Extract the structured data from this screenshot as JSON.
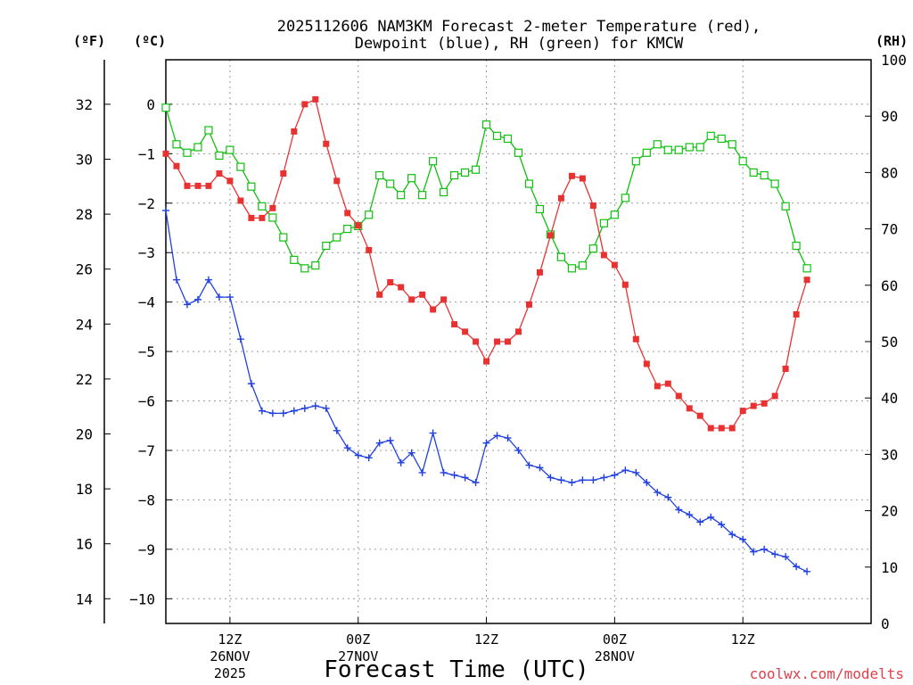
{
  "chart_data": {
    "type": "line",
    "title_line1": "2025112606 NAM3KM Forecast 2-meter Temperature (red),",
    "title_line2": "Dewpoint (blue), RH (green) for KMCW",
    "xlabel": "Forecast Time (UTC)",
    "credit": "coolwx.com/modelts",
    "units": {
      "fahrenheit": "(ºF)",
      "celsius": "(ºC)",
      "rh": "(RH)"
    },
    "x": {
      "start_hour": 6,
      "end_hour": 72,
      "step_hours": 1
    },
    "x_ticks": [
      {
        "hour": 12,
        "label": "12Z",
        "sub1": "26NOV",
        "sub2": "2025"
      },
      {
        "hour": 24,
        "label": "00Z",
        "sub1": "27NOV",
        "sub2": ""
      },
      {
        "hour": 36,
        "label": "12Z",
        "sub1": "",
        "sub2": ""
      },
      {
        "hour": 48,
        "label": "00Z",
        "sub1": "28NOV",
        "sub2": ""
      },
      {
        "hour": 60,
        "label": "12Z",
        "sub1": "",
        "sub2": ""
      }
    ],
    "celsius_axis": {
      "min": -10.5,
      "max": 0.9,
      "ticks": [
        "0",
        "−1",
        "−2",
        "−3",
        "−4",
        "−5",
        "−6",
        "−7",
        "−8",
        "−9",
        "−10"
      ]
    },
    "fahrenheit_axis": {
      "ticks": [
        "32",
        "30",
        "28",
        "26",
        "24",
        "22",
        "20",
        "18",
        "16",
        "14"
      ]
    },
    "rh_axis": {
      "min": 0,
      "max": 100,
      "ticks": [
        "100",
        "90",
        "80",
        "70",
        "60",
        "50",
        "40",
        "30",
        "20",
        "10",
        "0"
      ]
    },
    "series": [
      {
        "name": "Temperature",
        "unit": "C",
        "color": "#e83232",
        "marker": "filled-square",
        "values": [
          -1.0,
          -1.25,
          -1.65,
          -1.65,
          -1.65,
          -1.4,
          -1.55,
          -1.95,
          -2.3,
          -2.3,
          -2.1,
          -1.4,
          -0.55,
          0.0,
          0.1,
          -0.8,
          -1.55,
          -2.2,
          -2.45,
          -2.95,
          -3.85,
          -3.6,
          -3.7,
          -3.95,
          -3.85,
          -4.15,
          -3.95,
          -4.45,
          -4.6,
          -4.8,
          -5.2,
          -4.8,
          -4.8,
          -4.6,
          -4.05,
          -3.4,
          -2.65,
          -1.9,
          -1.45,
          -1.5,
          -2.05,
          -3.05,
          -3.25,
          -3.65,
          -4.75,
          -5.25,
          -5.7,
          -5.65,
          -5.9,
          -6.15,
          -6.3,
          -6.55,
          -6.55,
          -6.55,
          -6.2,
          -6.1,
          -6.05,
          -5.9,
          -5.35,
          -4.25,
          -3.55
        ]
      },
      {
        "name": "Dewpoint",
        "unit": "C",
        "color": "#2040e0",
        "marker": "plus",
        "values": [
          -2.15,
          -3.55,
          -4.05,
          -3.95,
          -3.55,
          -3.9,
          -3.9,
          -4.75,
          -5.65,
          -6.2,
          -6.25,
          -6.25,
          -6.2,
          -6.15,
          -6.1,
          -6.15,
          -6.6,
          -6.95,
          -7.1,
          -7.15,
          -6.85,
          -6.8,
          -7.25,
          -7.05,
          -7.45,
          -6.65,
          -7.45,
          -7.5,
          -7.55,
          -7.65,
          -6.85,
          -6.7,
          -6.75,
          -7.0,
          -7.3,
          -7.35,
          -7.55,
          -7.6,
          -7.65,
          -7.6,
          -7.6,
          -7.55,
          -7.5,
          -7.4,
          -7.45,
          -7.65,
          -7.85,
          -7.95,
          -8.2,
          -8.3,
          -8.45,
          -8.35,
          -8.5,
          -8.7,
          -8.8,
          -9.05,
          -9.0,
          -9.1,
          -9.15,
          -9.35,
          -9.45
        ]
      },
      {
        "name": "RH",
        "unit": "%",
        "color": "#10c010",
        "marker": "open-square",
        "values": [
          91.5,
          85,
          83.5,
          84.5,
          87.5,
          83,
          84,
          81,
          77.5,
          74,
          72,
          68.5,
          64.5,
          63,
          63.5,
          67,
          68.5,
          70,
          70.5,
          72.5,
          79.5,
          78,
          76,
          79,
          76,
          82,
          76.5,
          79.5,
          80,
          80.5,
          88.5,
          86.5,
          86,
          83.5,
          78,
          73.5,
          69,
          65,
          63,
          63.5,
          66.5,
          71,
          72.5,
          75.5,
          82,
          83.5,
          85,
          84,
          84,
          84.5,
          84.5,
          86.5,
          86,
          85,
          82,
          80,
          79.5,
          78,
          74,
          67,
          63
        ]
      }
    ]
  }
}
